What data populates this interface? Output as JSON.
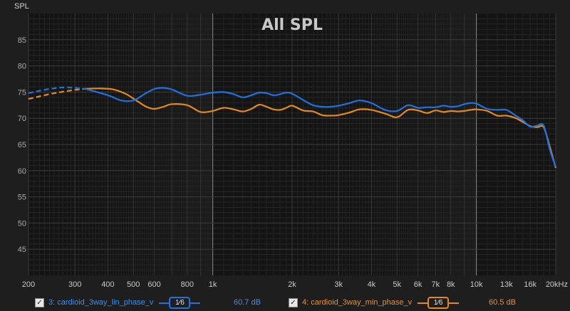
{
  "chart_data": {
    "type": "line",
    "title": "All SPL",
    "ylabel": "SPL",
    "xlabel": "",
    "xscale": "log",
    "xlim": [
      200,
      20000
    ],
    "ylim": [
      40,
      90
    ],
    "grid": true,
    "y_ticks": [
      45,
      50,
      55,
      60,
      65,
      70,
      75,
      80,
      85
    ],
    "x_ticks": [
      {
        "value": 200,
        "label": "200"
      },
      {
        "value": 300,
        "label": "300"
      },
      {
        "value": 400,
        "label": "400"
      },
      {
        "value": 500,
        "label": "500"
      },
      {
        "value": 600,
        "label": "600"
      },
      {
        "value": 800,
        "label": "800"
      },
      {
        "value": 1000,
        "label": "1k"
      },
      {
        "value": 2000,
        "label": "2k"
      },
      {
        "value": 3000,
        "label": "3k"
      },
      {
        "value": 4000,
        "label": "4k"
      },
      {
        "value": 5000,
        "label": "5k"
      },
      {
        "value": 6000,
        "label": "6k"
      },
      {
        "value": 7000,
        "label": "7k"
      },
      {
        "value": 8000,
        "label": "8k"
      },
      {
        "value": 10000,
        "label": "10k"
      },
      {
        "value": 13000,
        "label": "13k"
      },
      {
        "value": 16000,
        "label": "16k"
      },
      {
        "value": 20000,
        "label": "20kHz"
      }
    ],
    "series": [
      {
        "name": "3: cardioid_3way_lin_phase_v",
        "color": "#1f72dd",
        "dashed_below": 330,
        "x": [
          200,
          240,
          280,
          330,
          400,
          450,
          500,
          550,
          600,
          650,
          700,
          800,
          900,
          1000,
          1100,
          1200,
          1300,
          1400,
          1500,
          1600,
          1700,
          1800,
          1900,
          2000,
          2200,
          2400,
          2600,
          2800,
          3000,
          3300,
          3600,
          4000,
          4500,
          5000,
          5500,
          6000,
          6500,
          7000,
          7500,
          8000,
          8500,
          9000,
          9500,
          10000,
          11000,
          12000,
          13000,
          14000,
          15000,
          16000,
          17000,
          18000,
          19000,
          20000
        ],
        "y": [
          74.8,
          75.6,
          75.9,
          75.6,
          74.4,
          73.4,
          73.4,
          74.6,
          75.6,
          75.8,
          75.5,
          74.3,
          74.5,
          74.9,
          75.0,
          74.6,
          74.0,
          74.4,
          74.9,
          74.8,
          74.4,
          74.6,
          74.9,
          74.7,
          73.5,
          72.5,
          72.2,
          72.2,
          72.4,
          72.9,
          73.4,
          72.9,
          71.6,
          71.4,
          72.5,
          72.0,
          72.1,
          72.1,
          72.4,
          72.2,
          72.3,
          72.7,
          72.9,
          72.8,
          71.8,
          71.6,
          71.6,
          70.6,
          69.6,
          68.4,
          68.6,
          68.6,
          64.0,
          60.7
        ]
      },
      {
        "name": "4: cardioid_3way_min_phase_v",
        "color": "#e48a1a",
        "dashed_below": 320,
        "x": [
          200,
          240,
          280,
          320,
          370,
          420,
          470,
          520,
          560,
          600,
          650,
          700,
          800,
          900,
          1000,
          1100,
          1200,
          1300,
          1400,
          1500,
          1600,
          1700,
          1800,
          1900,
          2000,
          2200,
          2400,
          2600,
          2800,
          3000,
          3300,
          3600,
          4000,
          4500,
          5000,
          5500,
          6000,
          6500,
          7000,
          7500,
          8000,
          8500,
          9000,
          9500,
          10000,
          11000,
          12000,
          13000,
          14000,
          15000,
          16000,
          17000,
          18000,
          19000,
          20000
        ],
        "y": [
          73.7,
          74.6,
          75.2,
          75.6,
          75.7,
          75.5,
          74.6,
          73.2,
          72.2,
          71.8,
          72.2,
          72.7,
          72.5,
          71.2,
          71.4,
          72.0,
          71.7,
          71.3,
          71.8,
          72.6,
          72.2,
          71.7,
          71.6,
          72.0,
          72.4,
          71.5,
          71.3,
          70.6,
          70.5,
          70.6,
          71.1,
          71.7,
          71.6,
          70.9,
          70.2,
          71.6,
          71.5,
          71.0,
          71.5,
          71.2,
          71.4,
          71.3,
          71.4,
          71.6,
          71.7,
          71.4,
          70.5,
          70.5,
          70.1,
          69.3,
          68.5,
          68.3,
          68.3,
          64.5,
          60.5
        ]
      }
    ]
  },
  "legend": [
    {
      "checked": true,
      "name": "3: cardioid_3way_lin_phase_v",
      "smoothing": "1⁄6",
      "level": "60.7 dB",
      "color": "#1f72dd"
    },
    {
      "checked": true,
      "name": "4: cardioid_3way_min_phase_v",
      "smoothing": "1⁄6",
      "level": "60.5 dB",
      "color": "#e48a1a"
    }
  ]
}
